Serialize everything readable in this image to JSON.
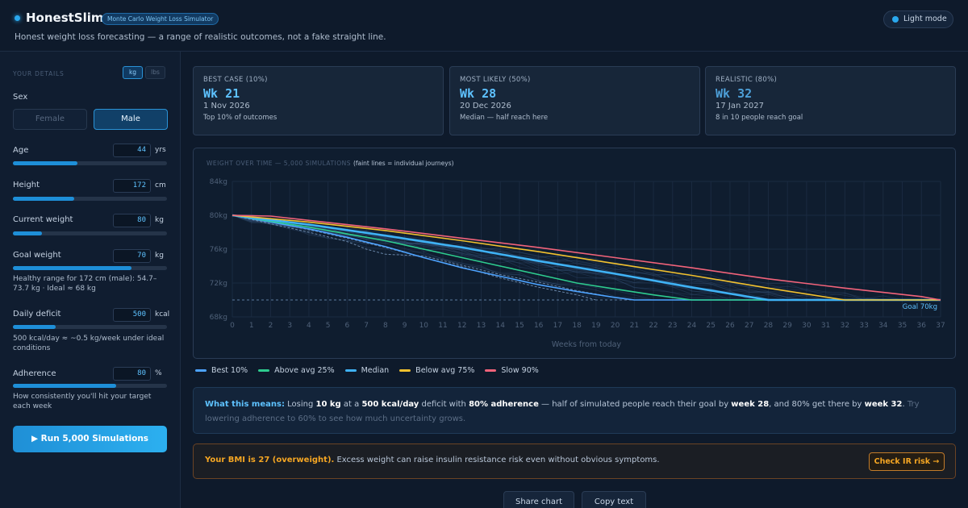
{
  "header": {
    "brand": "HonestSlim",
    "badge": "Monte Carlo Weight Loss Simulator",
    "tagline": "Honest weight loss forecasting — a range of realistic outcomes, not a fake straight line.",
    "light_mode_label": "Light mode"
  },
  "sidebar": {
    "section_title": "YOUR DETAILS",
    "units": {
      "kg": "kg",
      "lbs": "lbs",
      "selected": "kg"
    },
    "sex": {
      "label": "Sex",
      "female": "Female",
      "male": "Male",
      "selected": "Male"
    },
    "age": {
      "label": "Age",
      "value": "44",
      "unit": "yrs",
      "fill": 0.42
    },
    "height": {
      "label": "Height",
      "value": "172",
      "unit": "cm",
      "fill": 0.4
    },
    "current_weight": {
      "label": "Current weight",
      "value": "80",
      "unit": "kg",
      "fill": 0.19
    },
    "goal_weight": {
      "label": "Goal weight",
      "value": "70",
      "unit": "kg",
      "fill": 0.77,
      "hint": "Healthy range for 172 cm (male): 54.7–73.7 kg · Ideal ≈ 68 kg"
    },
    "daily_deficit": {
      "label": "Daily deficit",
      "value": "500",
      "unit": "kcal",
      "fill": 0.28,
      "hint": "500 kcal/day ≈ ~0.5 kg/week under ideal conditions"
    },
    "adherence": {
      "label": "Adherence",
      "value": "80",
      "unit": "%",
      "fill": 0.67,
      "hint": "How consistently you'll hit your target each week"
    },
    "run_button": "▶ Run 5,000 Simulations"
  },
  "cards": [
    {
      "title": "BEST CASE (10%)",
      "week": "Wk 21",
      "date": "1 Nov 2026",
      "sub": "Top 10% of outcomes"
    },
    {
      "title": "MOST LIKELY (50%)",
      "week": "Wk 28",
      "date": "20 Dec 2026",
      "sub": "Median — half reach here"
    },
    {
      "title": "REALISTIC (80%)",
      "week": "Wk 32",
      "date": "17 Jan 2027",
      "sub": "8 in 10 people reach goal"
    }
  ],
  "chart_title": "WEIGHT OVER TIME — 5,000 SIMULATIONS",
  "chart_subtitle": "(faint lines = individual journeys)",
  "chart_data": {
    "type": "line",
    "xlabel": "Weeks from today",
    "ylabel": "",
    "xlim": [
      0,
      37
    ],
    "ylim": [
      68,
      84
    ],
    "x_ticks": [
      0,
      1,
      2,
      3,
      4,
      5,
      6,
      7,
      8,
      9,
      10,
      11,
      12,
      13,
      14,
      15,
      16,
      17,
      18,
      19,
      20,
      21,
      22,
      23,
      24,
      25,
      26,
      27,
      28,
      29,
      30,
      31,
      32,
      33,
      34,
      35,
      36,
      37
    ],
    "y_ticks": [
      "68kg",
      "72kg",
      "76kg",
      "80kg",
      "84kg"
    ],
    "y_tick_values": [
      68,
      72,
      76,
      80,
      84
    ],
    "goal": {
      "value": 70,
      "label": "Goal 70kg"
    },
    "grid": true,
    "series": [
      {
        "name": "Best 10%",
        "color": "#4da3ff",
        "x": [
          0,
          2,
          4,
          6,
          8,
          10,
          12,
          14,
          16,
          18,
          20,
          21,
          37
        ],
        "values": [
          80,
          79.2,
          78.4,
          77.4,
          76.3,
          75.0,
          73.8,
          72.8,
          71.8,
          71.0,
          70.3,
          70,
          70
        ]
      },
      {
        "name": "Above avg 25%",
        "color": "#2ecc8f",
        "x": [
          0,
          2,
          4,
          6,
          8,
          10,
          12,
          14,
          16,
          18,
          20,
          22,
          24,
          37
        ],
        "values": [
          80,
          79.3,
          78.6,
          77.8,
          77.0,
          76.0,
          75.0,
          74.0,
          73.0,
          72.0,
          71.3,
          70.6,
          70,
          70
        ]
      },
      {
        "name": "Median",
        "color": "#3fb2f5",
        "x": [
          0,
          4,
          8,
          12,
          16,
          20,
          24,
          28,
          37
        ],
        "values": [
          80,
          78.9,
          77.6,
          76.2,
          74.6,
          73.1,
          71.5,
          70,
          70
        ]
      },
      {
        "name": "Below avg 75%",
        "color": "#f2c12e",
        "x": [
          0,
          4,
          8,
          12,
          16,
          20,
          24,
          28,
          32,
          37
        ],
        "values": [
          80,
          79.2,
          78.2,
          77.0,
          75.7,
          74.3,
          72.9,
          71.4,
          70,
          70
        ]
      },
      {
        "name": "Slow 90%",
        "color": "#f2637a",
        "x": [
          0,
          2,
          4,
          8,
          12,
          16,
          20,
          24,
          28,
          32,
          36,
          37
        ],
        "values": [
          80,
          79.9,
          79.4,
          78.4,
          77.3,
          76.2,
          75.0,
          73.8,
          72.5,
          71.4,
          70.4,
          70
        ]
      }
    ]
  },
  "meaning": {
    "prefix": "What this means:",
    "t1": " Losing ",
    "kg": "10 kg",
    "t2": " at a ",
    "deficit": "500 kcal/day",
    "t3": " deficit with ",
    "adherence": "80% adherence",
    "t4": " — half of simulated people reach their goal by ",
    "wk_median": "week 28",
    "t5": ", and 80% get there by ",
    "wk_80": "week 32",
    "t6": ".",
    "tip": " Try lowering adherence to 60% to see how much uncertainty grows."
  },
  "bmi": {
    "highlight": "Your BMI is 27 (overweight).",
    "text": " Excess weight can raise insulin resistance risk even without obvious symptoms.",
    "button": "Check IR risk →"
  },
  "actions": {
    "share": "Share chart",
    "copy": "Copy text"
  }
}
